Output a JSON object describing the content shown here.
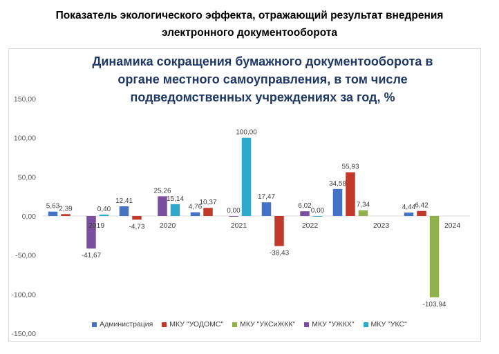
{
  "header": {
    "line1": "Показатель экологического эффекта, отражающий результат внедрения",
    "line2": "электронного документооборота"
  },
  "chart_data": {
    "type": "bar",
    "title_lines": [
      "Динамика сокращения бумажного документооборота в",
      "органе местного самоуправления, в том числе",
      "подведомственных учреждениях за год, %"
    ],
    "categories": [
      "2019",
      "2020",
      "2021",
      "2022",
      "2023",
      "2024"
    ],
    "series": [
      {
        "name": "Администрация",
        "color": "#4472c4",
        "values": [
          5.63,
          12.41,
          4.76,
          17.47,
          34.58,
          4.44
        ]
      },
      {
        "name": "МКУ \"УОДОМС\"",
        "color": "#c0392b",
        "values": [
          2.39,
          -4.73,
          10.37,
          -38.43,
          55.93,
          6.42
        ]
      },
      {
        "name": "МКУ \"УКСиЖКК\"",
        "color": "#8fb04a",
        "values": [
          null,
          null,
          null,
          null,
          7.34,
          -103.94
        ]
      },
      {
        "name": "МКУ \"УЖКХ\"",
        "color": "#7b4fa0",
        "values": [
          -41.67,
          25.26,
          0.0,
          6.02,
          null,
          null
        ]
      },
      {
        "name": "МКУ \"УКС\"",
        "color": "#2fa9c9",
        "values": [
          0.4,
          15.14,
          100.0,
          0.0,
          null,
          null
        ]
      }
    ],
    "data_labels": [
      [
        "5,63",
        "12,41",
        "4,76",
        "17,47",
        "34,58",
        "4,44"
      ],
      [
        "2,39",
        "-4,73",
        "10,37",
        "-38,43",
        "55,93",
        "6,42"
      ],
      [
        "",
        "",
        "",
        "",
        "7,34",
        "-103,94"
      ],
      [
        "-41,67",
        "25,26",
        "0,00",
        "6,02",
        "",
        ""
      ],
      [
        "0,40",
        "15,14",
        "100,00",
        "0,00",
        "",
        ""
      ]
    ],
    "ylim": [
      -150,
      150
    ],
    "yticks": [
      150,
      100,
      50,
      0,
      -50,
      -100,
      -150
    ],
    "ytick_labels": [
      "150,00",
      "100,00",
      "50,00",
      "0,00",
      "-50,00",
      "-100,00",
      "-150,00"
    ],
    "xlabel": "",
    "ylabel": "",
    "grid": false,
    "legend_position": "bottom"
  }
}
